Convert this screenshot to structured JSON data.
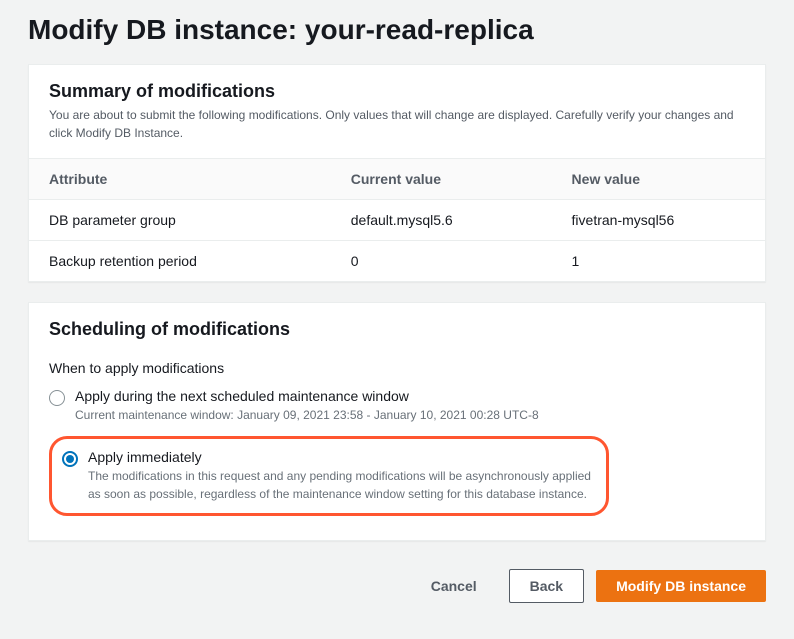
{
  "colors": {
    "background": "#f2f3f3",
    "panel_bg": "#ffffff",
    "panel_border": "#eaeded",
    "text": "#16191f",
    "muted": "#545b64",
    "desc": "#687078",
    "radio_checked": "#0073bb",
    "highlight_border": "#ff5630",
    "primary_button": "#ec7211"
  },
  "page": {
    "title": "Modify DB instance: your-read-replica"
  },
  "summary": {
    "heading": "Summary of modifications",
    "description": "You are about to submit the following modifications. Only values that will change are displayed. Carefully verify your changes and click Modify DB Instance.",
    "columns": [
      "Attribute",
      "Current value",
      "New value"
    ],
    "rows": [
      {
        "attribute": "DB parameter group",
        "current": "default.mysql5.6",
        "new": "fivetran-mysql56"
      },
      {
        "attribute": "Backup retention period",
        "current": "0",
        "new": "1"
      }
    ]
  },
  "scheduling": {
    "heading": "Scheduling of modifications",
    "field_label": "When to apply modifications",
    "options": [
      {
        "id": "next-window",
        "label": "Apply during the next scheduled maintenance window",
        "description": "Current maintenance window: January 09, 2021 23:58 - January 10, 2021 00:28 UTC-8",
        "selected": false,
        "highlighted": false
      },
      {
        "id": "immediately",
        "label": "Apply immediately",
        "description": "The modifications in this request and any pending modifications will be asynchronously applied as soon as possible, regardless of the maintenance window setting for this database instance.",
        "selected": true,
        "highlighted": true
      }
    ]
  },
  "footer": {
    "cancel": "Cancel",
    "back": "Back",
    "submit": "Modify DB instance"
  }
}
